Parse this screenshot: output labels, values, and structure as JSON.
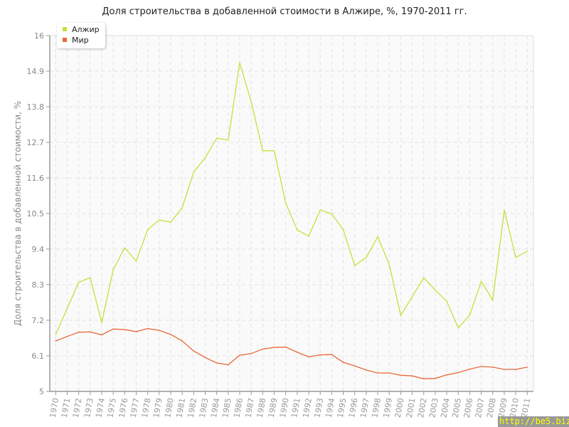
{
  "chart_data": {
    "type": "line",
    "title": "Доля строительства в добавленной стоимости в Алжире, %, 1970-2011 гг.",
    "xlabel": "",
    "ylabel": "Доля строительства в добавленной стоимости, %",
    "ylim": [
      5,
      16
    ],
    "yticks": [
      "5",
      "6.1",
      "7.2",
      "8.3",
      "9.4",
      "10.5",
      "11.6",
      "12.7",
      "13.8",
      "14.9",
      "16"
    ],
    "grid": true,
    "legend": "top-left",
    "x": [
      "1970",
      "1971",
      "1972",
      "1973",
      "1974",
      "1975",
      "1976",
      "1977",
      "1978",
      "1979",
      "1980",
      "1981",
      "1982",
      "1983",
      "1984",
      "1985",
      "1986",
      "1987",
      "1988",
      "1989",
      "1990",
      "1991",
      "1992",
      "1993",
      "1994",
      "1995",
      "1996",
      "1997",
      "1998",
      "1999",
      "2000",
      "2001",
      "2002",
      "2003",
      "2004",
      "2005",
      "2006",
      "2007",
      "2008",
      "2009",
      "2010",
      "2011"
    ],
    "series": [
      {
        "name": "Алжир",
        "color": "#c5e03a",
        "values": [
          6.76,
          7.57,
          8.37,
          8.52,
          7.13,
          8.76,
          9.44,
          9.03,
          10.0,
          10.3,
          10.23,
          10.68,
          11.78,
          12.22,
          12.83,
          12.77,
          15.16,
          13.95,
          12.44,
          12.44,
          10.83,
          9.99,
          9.8,
          10.61,
          10.49,
          10.0,
          8.89,
          9.14,
          9.78,
          8.92,
          7.35,
          7.93,
          8.52,
          8.13,
          7.79,
          6.96,
          7.36,
          8.4,
          7.82,
          10.61,
          9.14,
          9.33
        ]
      },
      {
        "name": "Мир",
        "color": "#e8693a",
        "values": [
          6.56,
          6.7,
          6.83,
          6.84,
          6.75,
          6.93,
          6.91,
          6.85,
          6.94,
          6.89,
          6.76,
          6.56,
          6.25,
          6.05,
          5.88,
          5.82,
          6.12,
          6.17,
          6.31,
          6.36,
          6.37,
          6.21,
          6.07,
          6.13,
          6.14,
          5.9,
          5.79,
          5.66,
          5.57,
          5.57,
          5.5,
          5.48,
          5.39,
          5.4,
          5.51,
          5.58,
          5.69,
          5.77,
          5.75,
          5.68,
          5.68,
          5.75
        ]
      }
    ]
  },
  "watermark": "http://be5.biz/"
}
